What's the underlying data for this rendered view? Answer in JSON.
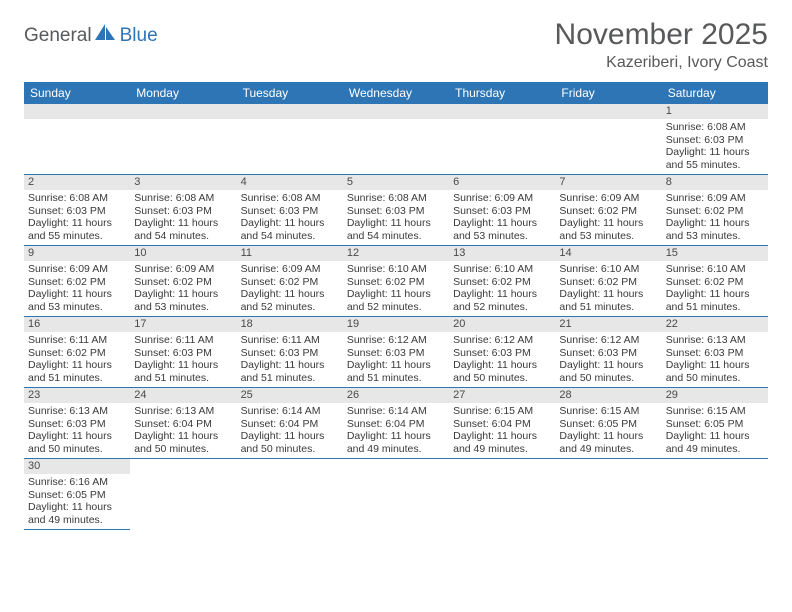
{
  "logo": {
    "part1": "General",
    "part2": "Blue"
  },
  "header": {
    "title": "November 2025",
    "location": "Kazeriberi, Ivory Coast"
  },
  "colors": {
    "header_bg": "#2e75b6",
    "header_text": "#ffffff",
    "daynum_bg": "#e7e7e7",
    "border": "#2e75b6",
    "title_color": "#58595b",
    "text_color": "#3a3a3a"
  },
  "weekdays": [
    "Sunday",
    "Monday",
    "Tuesday",
    "Wednesday",
    "Thursday",
    "Friday",
    "Saturday"
  ],
  "weeks": [
    [
      null,
      null,
      null,
      null,
      null,
      null,
      {
        "n": "1",
        "sr": "6:08 AM",
        "ss": "6:03 PM",
        "dl": "11 hours and 55 minutes."
      }
    ],
    [
      {
        "n": "2",
        "sr": "6:08 AM",
        "ss": "6:03 PM",
        "dl": "11 hours and 55 minutes."
      },
      {
        "n": "3",
        "sr": "6:08 AM",
        "ss": "6:03 PM",
        "dl": "11 hours and 54 minutes."
      },
      {
        "n": "4",
        "sr": "6:08 AM",
        "ss": "6:03 PM",
        "dl": "11 hours and 54 minutes."
      },
      {
        "n": "5",
        "sr": "6:08 AM",
        "ss": "6:03 PM",
        "dl": "11 hours and 54 minutes."
      },
      {
        "n": "6",
        "sr": "6:09 AM",
        "ss": "6:03 PM",
        "dl": "11 hours and 53 minutes."
      },
      {
        "n": "7",
        "sr": "6:09 AM",
        "ss": "6:02 PM",
        "dl": "11 hours and 53 minutes."
      },
      {
        "n": "8",
        "sr": "6:09 AM",
        "ss": "6:02 PM",
        "dl": "11 hours and 53 minutes."
      }
    ],
    [
      {
        "n": "9",
        "sr": "6:09 AM",
        "ss": "6:02 PM",
        "dl": "11 hours and 53 minutes."
      },
      {
        "n": "10",
        "sr": "6:09 AM",
        "ss": "6:02 PM",
        "dl": "11 hours and 53 minutes."
      },
      {
        "n": "11",
        "sr": "6:09 AM",
        "ss": "6:02 PM",
        "dl": "11 hours and 52 minutes."
      },
      {
        "n": "12",
        "sr": "6:10 AM",
        "ss": "6:02 PM",
        "dl": "11 hours and 52 minutes."
      },
      {
        "n": "13",
        "sr": "6:10 AM",
        "ss": "6:02 PM",
        "dl": "11 hours and 52 minutes."
      },
      {
        "n": "14",
        "sr": "6:10 AM",
        "ss": "6:02 PM",
        "dl": "11 hours and 51 minutes."
      },
      {
        "n": "15",
        "sr": "6:10 AM",
        "ss": "6:02 PM",
        "dl": "11 hours and 51 minutes."
      }
    ],
    [
      {
        "n": "16",
        "sr": "6:11 AM",
        "ss": "6:02 PM",
        "dl": "11 hours and 51 minutes."
      },
      {
        "n": "17",
        "sr": "6:11 AM",
        "ss": "6:03 PM",
        "dl": "11 hours and 51 minutes."
      },
      {
        "n": "18",
        "sr": "6:11 AM",
        "ss": "6:03 PM",
        "dl": "11 hours and 51 minutes."
      },
      {
        "n": "19",
        "sr": "6:12 AM",
        "ss": "6:03 PM",
        "dl": "11 hours and 51 minutes."
      },
      {
        "n": "20",
        "sr": "6:12 AM",
        "ss": "6:03 PM",
        "dl": "11 hours and 50 minutes."
      },
      {
        "n": "21",
        "sr": "6:12 AM",
        "ss": "6:03 PM",
        "dl": "11 hours and 50 minutes."
      },
      {
        "n": "22",
        "sr": "6:13 AM",
        "ss": "6:03 PM",
        "dl": "11 hours and 50 minutes."
      }
    ],
    [
      {
        "n": "23",
        "sr": "6:13 AM",
        "ss": "6:03 PM",
        "dl": "11 hours and 50 minutes."
      },
      {
        "n": "24",
        "sr": "6:13 AM",
        "ss": "6:04 PM",
        "dl": "11 hours and 50 minutes."
      },
      {
        "n": "25",
        "sr": "6:14 AM",
        "ss": "6:04 PM",
        "dl": "11 hours and 50 minutes."
      },
      {
        "n": "26",
        "sr": "6:14 AM",
        "ss": "6:04 PM",
        "dl": "11 hours and 49 minutes."
      },
      {
        "n": "27",
        "sr": "6:15 AM",
        "ss": "6:04 PM",
        "dl": "11 hours and 49 minutes."
      },
      {
        "n": "28",
        "sr": "6:15 AM",
        "ss": "6:05 PM",
        "dl": "11 hours and 49 minutes."
      },
      {
        "n": "29",
        "sr": "6:15 AM",
        "ss": "6:05 PM",
        "dl": "11 hours and 49 minutes."
      }
    ],
    [
      {
        "n": "30",
        "sr": "6:16 AM",
        "ss": "6:05 PM",
        "dl": "11 hours and 49 minutes."
      },
      null,
      null,
      null,
      null,
      null,
      null
    ]
  ],
  "labels": {
    "sunrise_prefix": "Sunrise: ",
    "sunset_prefix": "Sunset: ",
    "daylight_prefix": "Daylight: "
  }
}
